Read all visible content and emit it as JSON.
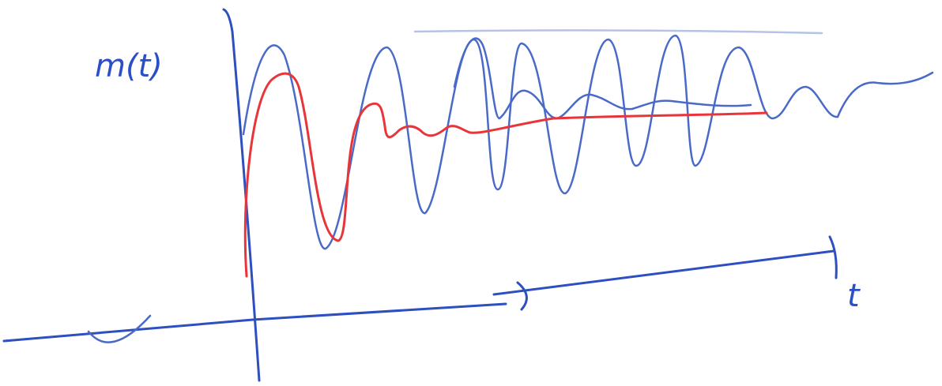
{
  "labels": {
    "y": "m(t)",
    "x": "t"
  }
}
